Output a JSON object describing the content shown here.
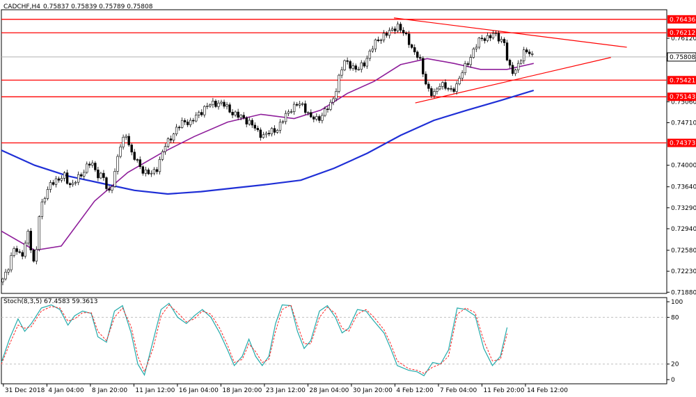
{
  "header": {
    "symbol": "CADCHF,H4",
    "ohlc": "0.75837 0.75839 0.75789 0.75808"
  },
  "stoch_header": "Stoch(8,3,5) 67.4583 59.3613",
  "colors": {
    "bull": "#000000",
    "bear": "#000000",
    "ma_fast": "#8e1d9a",
    "ma_slow": "#1f2fd6",
    "level": "#ff0000",
    "stoch_main": "#22aaaa",
    "stoch_signal": "#ff2222",
    "current_bg": "#000000"
  },
  "chart_data": [
    {
      "type": "candlestick",
      "title": "CADCHF,H4",
      "y_ticks": [
        0.7612,
        0.7506,
        0.7471,
        0.74,
        0.7364,
        0.7329,
        0.7294,
        0.7258,
        0.7223,
        0.7188
      ],
      "x_ticks": [
        "31 Dec 2018",
        "4 Jan 04:00",
        "8 Jan 20:00",
        "11 Jan 12:00",
        "16 Jan 04:00",
        "18 Jan 20:00",
        "23 Jan 12:00",
        "28 Jan 04:00",
        "30 Jan 20:00",
        "4 Feb 12:00",
        "7 Feb 04:00",
        "11 Feb 20:00",
        "14 Feb 12:00"
      ],
      "ylim": [
        0.7186,
        0.7655
      ],
      "horizontal_levels": [
        0.76436,
        0.76212,
        0.75421,
        0.75143,
        0.74373
      ],
      "level_labels": [
        "0.76436",
        "0.76212",
        "0.75421",
        "0.75143",
        "0.74373"
      ],
      "current_price": 0.75808,
      "current_label": "0.75808",
      "trendlines": [
        {
          "from": [
            0.59,
            0.7646
          ],
          "to": [
            0.94,
            0.7597
          ]
        },
        {
          "from": [
            0.622,
            0.7504
          ],
          "to": [
            0.916,
            0.758
          ]
        }
      ],
      "close_path": [
        [
          0.0,
          0.7205
        ],
        [
          0.01,
          0.723
        ],
        [
          0.02,
          0.7262
        ],
        [
          0.03,
          0.7248
        ],
        [
          0.04,
          0.7285
        ],
        [
          0.05,
          0.7228
        ],
        [
          0.057,
          0.732
        ],
        [
          0.065,
          0.7345
        ],
        [
          0.075,
          0.7375
        ],
        [
          0.085,
          0.7372
        ],
        [
          0.095,
          0.7385
        ],
        [
          0.105,
          0.7362
        ],
        [
          0.115,
          0.738
        ],
        [
          0.125,
          0.7392
        ],
        [
          0.135,
          0.7405
        ],
        [
          0.145,
          0.7385
        ],
        [
          0.155,
          0.7378
        ],
        [
          0.16,
          0.7348
        ],
        [
          0.17,
          0.7385
        ],
        [
          0.178,
          0.743
        ],
        [
          0.188,
          0.7455
        ],
        [
          0.195,
          0.7418
        ],
        [
          0.205,
          0.7405
        ],
        [
          0.215,
          0.7388
        ],
        [
          0.225,
          0.7385
        ],
        [
          0.235,
          0.7398
        ],
        [
          0.245,
          0.743
        ],
        [
          0.255,
          0.7448
        ],
        [
          0.265,
          0.7462
        ],
        [
          0.275,
          0.7475
        ],
        [
          0.285,
          0.747
        ],
        [
          0.295,
          0.7485
        ],
        [
          0.305,
          0.7495
        ],
        [
          0.315,
          0.7502
        ],
        [
          0.325,
          0.7505
        ],
        [
          0.335,
          0.75
        ],
        [
          0.345,
          0.749
        ],
        [
          0.355,
          0.7482
        ],
        [
          0.365,
          0.7478
        ],
        [
          0.375,
          0.747
        ],
        [
          0.385,
          0.7455
        ],
        [
          0.395,
          0.745
        ],
        [
          0.405,
          0.7455
        ],
        [
          0.415,
          0.7462
        ],
        [
          0.425,
          0.7478
        ],
        [
          0.435,
          0.7495
        ],
        [
          0.445,
          0.7502
        ],
        [
          0.455,
          0.7498
        ],
        [
          0.465,
          0.748
        ],
        [
          0.475,
          0.7475
        ],
        [
          0.485,
          0.749
        ],
        [
          0.495,
          0.75
        ],
        [
          0.5,
          0.7515
        ],
        [
          0.508,
          0.755
        ],
        [
          0.515,
          0.7572
        ],
        [
          0.525,
          0.7568
        ],
        [
          0.535,
          0.7558
        ],
        [
          0.545,
          0.757
        ],
        [
          0.555,
          0.7592
        ],
        [
          0.565,
          0.7608
        ],
        [
          0.575,
          0.7618
        ],
        [
          0.585,
          0.7622
        ],
        [
          0.595,
          0.7635
        ],
        [
          0.603,
          0.7622
        ],
        [
          0.612,
          0.7608
        ],
        [
          0.62,
          0.759
        ],
        [
          0.628,
          0.7578
        ],
        [
          0.636,
          0.7545
        ],
        [
          0.644,
          0.752
        ],
        [
          0.652,
          0.7518
        ],
        [
          0.66,
          0.754
        ],
        [
          0.668,
          0.753
        ],
        [
          0.676,
          0.7522
        ],
        [
          0.684,
          0.7535
        ],
        [
          0.692,
          0.7555
        ],
        [
          0.7,
          0.7568
        ],
        [
          0.708,
          0.759
        ],
        [
          0.716,
          0.7605
        ],
        [
          0.724,
          0.7612
        ],
        [
          0.732,
          0.7615
        ],
        [
          0.74,
          0.7618
        ],
        [
          0.748,
          0.7612
        ],
        [
          0.756,
          0.7606
        ],
        [
          0.762,
          0.7562
        ],
        [
          0.77,
          0.7555
        ],
        [
          0.778,
          0.7572
        ],
        [
          0.786,
          0.7588
        ],
        [
          0.794,
          0.759
        ],
        [
          0.8,
          0.7581
        ]
      ],
      "series": [
        {
          "name": "",
          "values": [
            [
              0.0,
              0.729
            ],
            [
              0.05,
              0.7258
            ],
            [
              0.09,
              0.7265
            ],
            [
              0.14,
              0.734
            ],
            [
              0.19,
              0.7388
            ],
            [
              0.24,
              0.742
            ],
            [
              0.29,
              0.7448
            ],
            [
              0.34,
              0.7472
            ],
            [
              0.39,
              0.7485
            ],
            [
              0.44,
              0.7478
            ],
            [
              0.48,
              0.7492
            ],
            [
              0.52,
              0.752
            ],
            [
              0.56,
              0.754
            ],
            [
              0.6,
              0.7568
            ],
            [
              0.64,
              0.7578
            ],
            [
              0.68,
              0.757
            ],
            [
              0.72,
              0.756
            ],
            [
              0.76,
              0.756
            ],
            [
              0.8,
              0.757
            ]
          ]
        },
        {
          "name": "",
          "values": [
            [
              0.0,
              0.7425
            ],
            [
              0.05,
              0.74
            ],
            [
              0.1,
              0.7382
            ],
            [
              0.15,
              0.737
            ],
            [
              0.2,
              0.7358
            ],
            [
              0.25,
              0.7352
            ],
            [
              0.3,
              0.7356
            ],
            [
              0.35,
              0.7362
            ],
            [
              0.4,
              0.7368
            ],
            [
              0.45,
              0.7375
            ],
            [
              0.5,
              0.7395
            ],
            [
              0.55,
              0.742
            ],
            [
              0.6,
              0.745
            ],
            [
              0.65,
              0.7475
            ],
            [
              0.7,
              0.7492
            ],
            [
              0.75,
              0.7508
            ],
            [
              0.8,
              0.7525
            ]
          ]
        }
      ]
    },
    {
      "type": "line",
      "title": "Stoch(8,3,5) 67.4583 59.3613",
      "ylim": [
        0,
        100
      ],
      "y_ticks": [
        100,
        80,
        20,
        0
      ],
      "y_tick_labels": [
        "100",
        "80",
        "20",
        "0"
      ],
      "levels": [
        80,
        20
      ],
      "series": [
        {
          "name": "",
          "values": [
            [
              0.0,
              22
            ],
            [
              0.012,
              52
            ],
            [
              0.025,
              78
            ],
            [
              0.035,
              62
            ],
            [
              0.045,
              72
            ],
            [
              0.06,
              92
            ],
            [
              0.075,
              96
            ],
            [
              0.088,
              90
            ],
            [
              0.1,
              70
            ],
            [
              0.11,
              82
            ],
            [
              0.122,
              88
            ],
            [
              0.135,
              85
            ],
            [
              0.145,
              55
            ],
            [
              0.158,
              48
            ],
            [
              0.17,
              88
            ],
            [
              0.182,
              95
            ],
            [
              0.195,
              60
            ],
            [
              0.205,
              20
            ],
            [
              0.215,
              6
            ],
            [
              0.228,
              50
            ],
            [
              0.24,
              90
            ],
            [
              0.252,
              98
            ],
            [
              0.265,
              80
            ],
            [
              0.278,
              72
            ],
            [
              0.29,
              82
            ],
            [
              0.302,
              90
            ],
            [
              0.315,
              80
            ],
            [
              0.328,
              60
            ],
            [
              0.34,
              38
            ],
            [
              0.35,
              18
            ],
            [
              0.362,
              30
            ],
            [
              0.372,
              52
            ],
            [
              0.382,
              30
            ],
            [
              0.392,
              18
            ],
            [
              0.402,
              30
            ],
            [
              0.412,
              72
            ],
            [
              0.422,
              96
            ],
            [
              0.435,
              95
            ],
            [
              0.445,
              62
            ],
            [
              0.455,
              40
            ],
            [
              0.465,
              50
            ],
            [
              0.478,
              88
            ],
            [
              0.49,
              95
            ],
            [
              0.502,
              80
            ],
            [
              0.512,
              60
            ],
            [
              0.522,
              66
            ],
            [
              0.535,
              90
            ],
            [
              0.548,
              88
            ],
            [
              0.56,
              75
            ],
            [
              0.575,
              60
            ],
            [
              0.585,
              40
            ],
            [
              0.595,
              18
            ],
            [
              0.612,
              12
            ],
            [
              0.625,
              10
            ],
            [
              0.635,
              5
            ],
            [
              0.648,
              22
            ],
            [
              0.66,
              20
            ],
            [
              0.672,
              38
            ],
            [
              0.685,
              92
            ],
            [
              0.698,
              90
            ],
            [
              0.712,
              82
            ],
            [
              0.725,
              40
            ],
            [
              0.738,
              18
            ],
            [
              0.75,
              30
            ],
            [
              0.76,
              67
            ]
          ]
        },
        {
          "name": "",
          "values": [
            [
              0.0,
              20
            ],
            [
              0.012,
              45
            ],
            [
              0.025,
              70
            ],
            [
              0.035,
              66
            ],
            [
              0.045,
              68
            ],
            [
              0.06,
              88
            ],
            [
              0.075,
              94
            ],
            [
              0.088,
              92
            ],
            [
              0.1,
              75
            ],
            [
              0.11,
              78
            ],
            [
              0.122,
              86
            ],
            [
              0.135,
              86
            ],
            [
              0.145,
              62
            ],
            [
              0.158,
              50
            ],
            [
              0.17,
              80
            ],
            [
              0.182,
              92
            ],
            [
              0.195,
              68
            ],
            [
              0.205,
              30
            ],
            [
              0.215,
              10
            ],
            [
              0.228,
              40
            ],
            [
              0.24,
              82
            ],
            [
              0.252,
              96
            ],
            [
              0.265,
              86
            ],
            [
              0.278,
              74
            ],
            [
              0.29,
              78
            ],
            [
              0.302,
              88
            ],
            [
              0.315,
              84
            ],
            [
              0.328,
              66
            ],
            [
              0.34,
              44
            ],
            [
              0.35,
              22
            ],
            [
              0.362,
              26
            ],
            [
              0.372,
              46
            ],
            [
              0.382,
              36
            ],
            [
              0.392,
              22
            ],
            [
              0.402,
              26
            ],
            [
              0.412,
              62
            ],
            [
              0.422,
              90
            ],
            [
              0.435,
              96
            ],
            [
              0.445,
              70
            ],
            [
              0.455,
              46
            ],
            [
              0.465,
              46
            ],
            [
              0.478,
              80
            ],
            [
              0.49,
              93
            ],
            [
              0.502,
              85
            ],
            [
              0.512,
              66
            ],
            [
              0.522,
              62
            ],
            [
              0.535,
              84
            ],
            [
              0.548,
              90
            ],
            [
              0.56,
              80
            ],
            [
              0.575,
              64
            ],
            [
              0.585,
              46
            ],
            [
              0.595,
              24
            ],
            [
              0.612,
              14
            ],
            [
              0.625,
              12
            ],
            [
              0.635,
              8
            ],
            [
              0.648,
              16
            ],
            [
              0.66,
              20
            ],
            [
              0.672,
              30
            ],
            [
              0.685,
              84
            ],
            [
              0.698,
              92
            ],
            [
              0.712,
              86
            ],
            [
              0.725,
              50
            ],
            [
              0.738,
              24
            ],
            [
              0.75,
              26
            ],
            [
              0.76,
              59
            ]
          ]
        }
      ]
    }
  ]
}
